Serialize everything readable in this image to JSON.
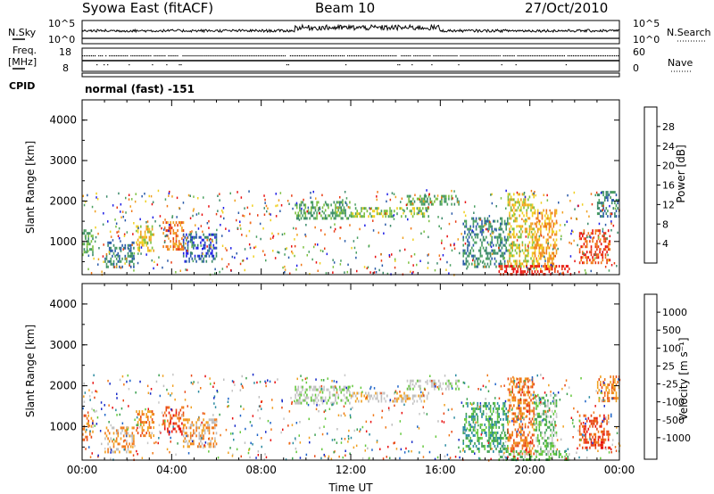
{
  "header": {
    "station": "Syowa East (fitACF)",
    "beam": "Beam 10",
    "date": "27/Oct/2010"
  },
  "top_panels": {
    "nsky": {
      "label": "N.Sky",
      "tick_hi": "10^5",
      "tick_lo": "10^0"
    },
    "nsearch": {
      "label": "N.Search",
      "tick_hi": "10^5",
      "tick_lo": "10^0"
    },
    "freq": {
      "label_line1": "Freq.",
      "label_line2": "[MHz]",
      "tick_hi": "18",
      "tick_lo": "8"
    },
    "nave": {
      "label": "Nave",
      "tick_hi": "60",
      "tick_lo": "0"
    },
    "cpid": {
      "label": "CPID",
      "value": "normal (fast) -151"
    }
  },
  "chart_data": [
    {
      "type": "heatmap",
      "panel": "power",
      "ylabel": "Slant Range [km]",
      "ylim": [
        180,
        4500
      ],
      "yticks": [
        "1000",
        "2000",
        "3000",
        "4000"
      ],
      "xlim": [
        0,
        24
      ],
      "colorbar": {
        "label": "Power [dB]",
        "ticks": [
          "4",
          "8",
          "12",
          "16",
          "20",
          "24",
          "28"
        ],
        "colors": [
          "#1e1ee6",
          "#2a5aa8",
          "#3c8a6a",
          "#4aa060",
          "#7cc040",
          "#f0d020",
          "#f0a020",
          "#f07818",
          "#e83c14",
          "#e81010"
        ]
      },
      "regions": [
        {
          "t0": 0.0,
          "t1": 0.5,
          "r0": 700,
          "r1": 1300,
          "level": 3
        },
        {
          "t0": 1.0,
          "t1": 2.3,
          "r0": 400,
          "r1": 1000,
          "level": 2
        },
        {
          "t0": 2.4,
          "t1": 3.2,
          "r0": 800,
          "r1": 1400,
          "level": 5
        },
        {
          "t0": 3.6,
          "t1": 4.5,
          "r0": 800,
          "r1": 1500,
          "level": 7
        },
        {
          "t0": 4.5,
          "t1": 6.0,
          "r0": 500,
          "r1": 1200,
          "level": 1
        },
        {
          "t0": 9.5,
          "t1": 12.0,
          "r0": 1600,
          "r1": 2000,
          "level": 3
        },
        {
          "t0": 12.0,
          "t1": 15.5,
          "r0": 1650,
          "r1": 1850,
          "level": 4
        },
        {
          "t0": 14.5,
          "t1": 16.8,
          "r0": 1900,
          "r1": 2150,
          "level": 3
        },
        {
          "t0": 17.0,
          "t1": 19.0,
          "r0": 400,
          "r1": 1600,
          "level": 2
        },
        {
          "t0": 19.0,
          "t1": 20.2,
          "r0": 350,
          "r1": 2200,
          "level": 5
        },
        {
          "t0": 20.2,
          "t1": 21.2,
          "r0": 300,
          "r1": 1800,
          "level": 6
        },
        {
          "t0": 18.6,
          "t1": 21.8,
          "r0": 200,
          "r1": 420,
          "level": 9
        },
        {
          "t0": 22.2,
          "t1": 23.6,
          "r0": 500,
          "r1": 1300,
          "level": 8
        },
        {
          "t0": 23.0,
          "t1": 24.0,
          "r0": 1600,
          "r1": 2250,
          "level": 2
        }
      ]
    },
    {
      "type": "heatmap",
      "panel": "velocity",
      "ylabel": "Slant Range [km]",
      "xlabel": "Time UT",
      "ylim": [
        180,
        4500
      ],
      "yticks": [
        "1000",
        "2000",
        "3000",
        "4000"
      ],
      "xlim": [
        0,
        24
      ],
      "xticks": [
        "00:00",
        "04:00",
        "08:00",
        "12:00",
        "16:00",
        "20:00",
        "00:00"
      ],
      "colorbar": {
        "label": "Velocity [m s⁻¹]",
        "ticks": [
          "1000",
          "500",
          "100",
          "25",
          "-25",
          "-100",
          "-500",
          "-1000"
        ],
        "colors": [
          "#1428c8",
          "#1e64c8",
          "#2a8aa0",
          "#3ca050",
          "#64c83c",
          "#c8c8c8",
          "#bebebe",
          "#f0a020",
          "#f07818",
          "#e84814",
          "#e81010"
        ]
      },
      "regions": [
        {
          "t0": 0.0,
          "t1": 0.5,
          "r0": 700,
          "r1": 1300,
          "level": 8
        },
        {
          "t0": 1.0,
          "t1": 2.3,
          "r0": 400,
          "r1": 1000,
          "level": 7
        },
        {
          "t0": 2.4,
          "t1": 3.2,
          "r0": 800,
          "r1": 1400,
          "level": 8
        },
        {
          "t0": 3.6,
          "t1": 4.5,
          "r0": 800,
          "r1": 1500,
          "level": 9
        },
        {
          "t0": 4.5,
          "t1": 6.0,
          "r0": 500,
          "r1": 1200,
          "level": 7
        },
        {
          "t0": 9.5,
          "t1": 12.0,
          "r0": 1600,
          "r1": 2000,
          "level": 5
        },
        {
          "t0": 12.0,
          "t1": 15.5,
          "r0": 1650,
          "r1": 1850,
          "level": 6
        },
        {
          "t0": 14.5,
          "t1": 16.8,
          "r0": 1900,
          "r1": 2150,
          "level": 5
        },
        {
          "t0": 17.0,
          "t1": 19.0,
          "r0": 400,
          "r1": 1600,
          "level": 3
        },
        {
          "t0": 19.0,
          "t1": 20.2,
          "r0": 350,
          "r1": 2200,
          "level": 8
        },
        {
          "t0": 20.2,
          "t1": 21.2,
          "r0": 300,
          "r1": 1800,
          "level": 4
        },
        {
          "t0": 18.6,
          "t1": 21.8,
          "r0": 200,
          "r1": 420,
          "level": 4
        },
        {
          "t0": 22.2,
          "t1": 23.6,
          "r0": 500,
          "r1": 1300,
          "level": 9
        },
        {
          "t0": 23.0,
          "t1": 24.0,
          "r0": 1600,
          "r1": 2250,
          "level": 8
        }
      ]
    }
  ]
}
